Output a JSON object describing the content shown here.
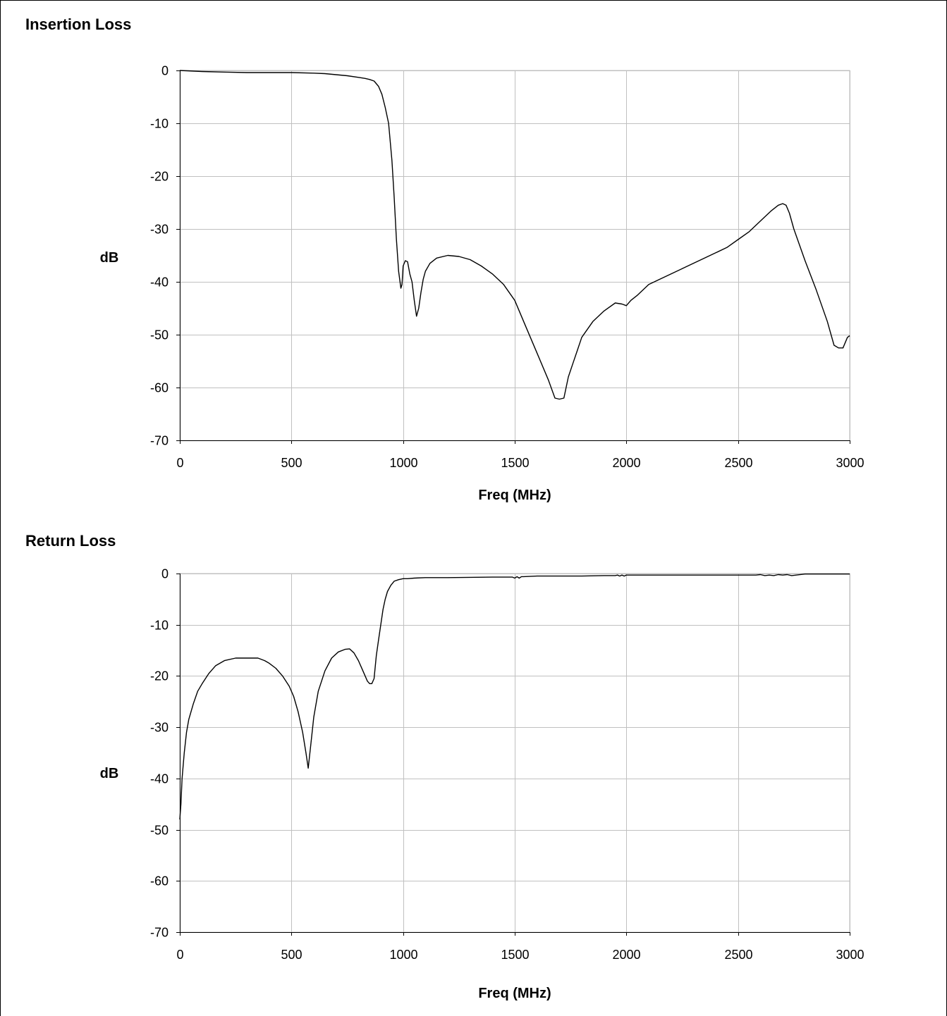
{
  "chart_data": [
    {
      "type": "line",
      "title": "Insertion Loss",
      "xlabel": "Freq (MHz)",
      "ylabel": "dB",
      "xlim": [
        0,
        3000
      ],
      "ylim": [
        -70,
        0
      ],
      "x_ticks": [
        0,
        500,
        1000,
        1500,
        2000,
        2500,
        3000
      ],
      "y_ticks": [
        0,
        -10,
        -20,
        -30,
        -40,
        -50,
        -60,
        -70
      ],
      "grid": true,
      "legend": "none",
      "line_color": "#000000",
      "series": [
        {
          "x": [
            0,
            100,
            200,
            300,
            400,
            500,
            600,
            650,
            700,
            750,
            800,
            830,
            850,
            870,
            890,
            905,
            920,
            935,
            950,
            960,
            970,
            980,
            990,
            995,
            1000,
            1010,
            1020,
            1030,
            1040,
            1050,
            1060,
            1070,
            1080,
            1090,
            1100,
            1120,
            1150,
            1200,
            1250,
            1300,
            1350,
            1400,
            1450,
            1500,
            1550,
            1600,
            1650,
            1680,
            1700,
            1720,
            1740,
            1760,
            1780,
            1800,
            1850,
            1900,
            1950,
            1980,
            2000,
            2020,
            2050,
            2100,
            2150,
            2200,
            2250,
            2300,
            2350,
            2400,
            2450,
            2500,
            2550,
            2600,
            2650,
            2680,
            2700,
            2715,
            2730,
            2750,
            2800,
            2850,
            2900,
            2930,
            2950,
            2970,
            2990,
            3000
          ],
          "y": [
            0,
            -0.2,
            -0.3,
            -0.4,
            -0.4,
            -0.4,
            -0.5,
            -0.6,
            -0.8,
            -1.0,
            -1.3,
            -1.5,
            -1.7,
            -2.0,
            -3.0,
            -4.5,
            -7.0,
            -10,
            -17,
            -24,
            -32,
            -38,
            -41.2,
            -40.5,
            -37,
            -36,
            -36.2,
            -38.5,
            -40,
            -43.5,
            -46.5,
            -45,
            -42,
            -39.5,
            -38,
            -36.5,
            -35.5,
            -35,
            -35.2,
            -35.8,
            -37,
            -38.5,
            -40.5,
            -43.5,
            -48.5,
            -53.5,
            -58.5,
            -62,
            -62.2,
            -62,
            -58,
            -55.5,
            -53,
            -50.5,
            -47.5,
            -45.5,
            -44,
            -44.2,
            -44.5,
            -43.5,
            -42.5,
            -40.5,
            -39.5,
            -38.5,
            -37.5,
            -36.5,
            -35.5,
            -34.5,
            -33.5,
            -32,
            -30.5,
            -28.5,
            -26.5,
            -25.5,
            -25.2,
            -25.5,
            -27,
            -30,
            -36,
            -41.5,
            -47.5,
            -52,
            -52.5,
            -52.5,
            -50.5,
            -50.2
          ]
        }
      ]
    },
    {
      "type": "line",
      "title": "Return Loss",
      "xlabel": "Freq (MHz)",
      "ylabel": "dB",
      "xlim": [
        0,
        3000
      ],
      "ylim": [
        -70,
        0
      ],
      "x_ticks": [
        0,
        500,
        1000,
        1500,
        2000,
        2500,
        3000
      ],
      "y_ticks": [
        0,
        -10,
        -20,
        -30,
        -40,
        -50,
        -60,
        -70
      ],
      "grid": true,
      "legend": "none",
      "line_color": "#000000",
      "series": [
        {
          "x": [
            0,
            5,
            10,
            20,
            30,
            40,
            60,
            80,
            100,
            130,
            160,
            200,
            250,
            300,
            350,
            380,
            400,
            430,
            460,
            490,
            510,
            530,
            550,
            565,
            575,
            585,
            600,
            620,
            650,
            680,
            710,
            740,
            760,
            780,
            800,
            820,
            840,
            850,
            860,
            870,
            880,
            890,
            900,
            910,
            920,
            930,
            945,
            960,
            980,
            1000,
            1020,
            1050,
            1100,
            1200,
            1400,
            1490,
            1500,
            1510,
            1520,
            1530,
            1540,
            1600,
            1800,
            1900,
            1950,
            1960,
            1970,
            1980,
            1990,
            2000,
            2200,
            2400,
            2580,
            2600,
            2620,
            2640,
            2660,
            2680,
            2700,
            2720,
            2740,
            2800,
            3000
          ],
          "y": [
            -48,
            -45,
            -40,
            -35,
            -31,
            -28.5,
            -25.5,
            -23,
            -21.5,
            -19.5,
            -18,
            -17,
            -16.5,
            -16.5,
            -16.5,
            -17,
            -17.5,
            -18.5,
            -20,
            -22,
            -24,
            -27,
            -31,
            -35,
            -38,
            -34,
            -28,
            -23,
            -19,
            -16.5,
            -15.3,
            -14.8,
            -14.7,
            -15.5,
            -17,
            -19,
            -21,
            -21.5,
            -21.5,
            -20.5,
            -16,
            -13,
            -10,
            -7,
            -5,
            -3.5,
            -2.3,
            -1.5,
            -1.2,
            -1.0,
            -1.0,
            -0.9,
            -0.8,
            -0.8,
            -0.7,
            -0.7,
            -0.9,
            -0.6,
            -0.9,
            -0.6,
            -0.6,
            -0.5,
            -0.5,
            -0.4,
            -0.4,
            -0.3,
            -0.5,
            -0.3,
            -0.5,
            -0.3,
            -0.3,
            -0.3,
            -0.3,
            -0.2,
            -0.4,
            -0.3,
            -0.4,
            -0.2,
            -0.3,
            -0.2,
            -0.4,
            -0.1,
            -0.1
          ]
        }
      ]
    }
  ]
}
